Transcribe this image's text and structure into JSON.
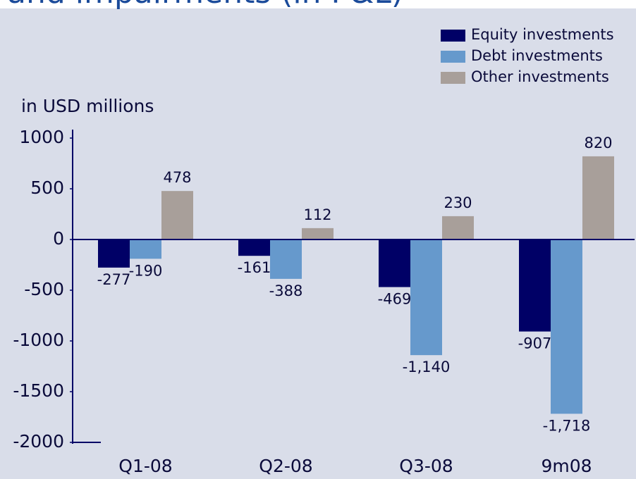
{
  "chart_data": {
    "type": "bar",
    "title": "and impairments (in P&L)",
    "y_label": "in USD millions",
    "categories": [
      "Q1-08",
      "Q2-08",
      "Q3-08",
      "9m08"
    ],
    "series": [
      {
        "name": "Equity investments",
        "color": "#000066",
        "values": [
          -277,
          -161,
          -469,
          -907
        ]
      },
      {
        "name": "Debt investments",
        "color": "#6699cc",
        "values": [
          -190,
          -388,
          -1140,
          -1718
        ],
        "value_labels": [
          "-190",
          "-388",
          "-1,140",
          "-1,718"
        ]
      },
      {
        "name": "Other investments",
        "color": "#a89f9a",
        "values": [
          478,
          112,
          230,
          820
        ]
      }
    ],
    "ylim": [
      -2000,
      1000
    ],
    "yticks": [
      1000,
      500,
      0,
      -500,
      -1000,
      -1500,
      -2000
    ],
    "legend": "top-right",
    "background": "#d9dde9"
  }
}
